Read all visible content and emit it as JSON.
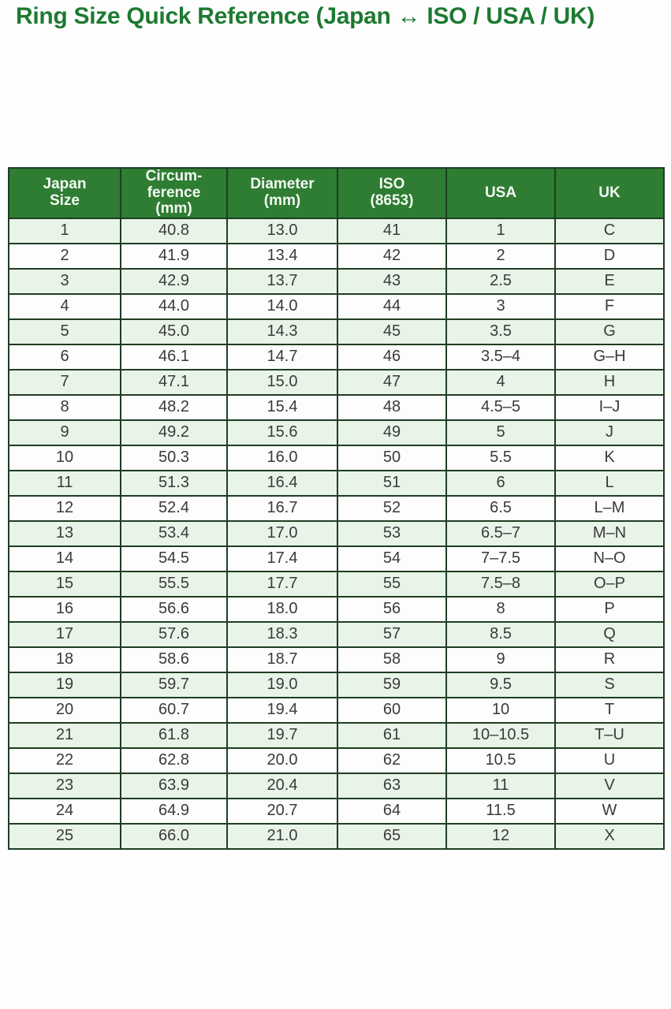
{
  "page": {
    "title": "Ring Size Quick Reference (Japan ↔ ISO / USA / UK)"
  },
  "colors": {
    "title_text": "#1d7a31",
    "header_bg": "#2e7d32",
    "header_text": "#f4f9f3",
    "row_alt_bg": "#e8f4e8",
    "row_bg": "#fcfdfc",
    "border": "#1f3d23",
    "cell_text": "#3a3a3a",
    "page_bg": "#fefefe"
  },
  "chart_data": {
    "type": "table",
    "title": "Ring Size Quick Reference (Japan ↔ ISO / USA / UK)",
    "columns": [
      "Japan Size",
      "Circumference (mm)",
      "Diameter (mm)",
      "ISO (8653)",
      "USA",
      "UK"
    ],
    "column_display": [
      "Japan\nSize",
      "Circum-\nference\n(mm)",
      "Diameter\n(mm)",
      "ISO\n(8653)",
      "USA",
      "UK"
    ],
    "rows": [
      [
        "1",
        "40.8",
        "13.0",
        "41",
        "1",
        "C"
      ],
      [
        "2",
        "41.9",
        "13.4",
        "42",
        "2",
        "D"
      ],
      [
        "3",
        "42.9",
        "13.7",
        "43",
        "2.5",
        "E"
      ],
      [
        "4",
        "44.0",
        "14.0",
        "44",
        "3",
        "F"
      ],
      [
        "5",
        "45.0",
        "14.3",
        "45",
        "3.5",
        "G"
      ],
      [
        "6",
        "46.1",
        "14.7",
        "46",
        "3.5–4",
        "G–H"
      ],
      [
        "7",
        "47.1",
        "15.0",
        "47",
        "4",
        "H"
      ],
      [
        "8",
        "48.2",
        "15.4",
        "48",
        "4.5–5",
        "I–J"
      ],
      [
        "9",
        "49.2",
        "15.6",
        "49",
        "5",
        "J"
      ],
      [
        "10",
        "50.3",
        "16.0",
        "50",
        "5.5",
        "K"
      ],
      [
        "11",
        "51.3",
        "16.4",
        "51",
        "6",
        "L"
      ],
      [
        "12",
        "52.4",
        "16.7",
        "52",
        "6.5",
        "L–M"
      ],
      [
        "13",
        "53.4",
        "17.0",
        "53",
        "6.5–7",
        "M–N"
      ],
      [
        "14",
        "54.5",
        "17.4",
        "54",
        "7–7.5",
        "N–O"
      ],
      [
        "15",
        "55.5",
        "17.7",
        "55",
        "7.5–8",
        "O–P"
      ],
      [
        "16",
        "56.6",
        "18.0",
        "56",
        "8",
        "P"
      ],
      [
        "17",
        "57.6",
        "18.3",
        "57",
        "8.5",
        "Q"
      ],
      [
        "18",
        "58.6",
        "18.7",
        "58",
        "9",
        "R"
      ],
      [
        "19",
        "59.7",
        "19.0",
        "59",
        "9.5",
        "S"
      ],
      [
        "20",
        "60.7",
        "19.4",
        "60",
        "10",
        "T"
      ],
      [
        "21",
        "61.8",
        "19.7",
        "61",
        "10–10.5",
        "T–U"
      ],
      [
        "22",
        "62.8",
        "20.0",
        "62",
        "10.5",
        "U"
      ],
      [
        "23",
        "63.9",
        "20.4",
        "63",
        "11",
        "V"
      ],
      [
        "24",
        "64.9",
        "20.7",
        "64",
        "11.5",
        "W"
      ],
      [
        "25",
        "66.0",
        "21.0",
        "65",
        "12",
        "X"
      ]
    ]
  }
}
